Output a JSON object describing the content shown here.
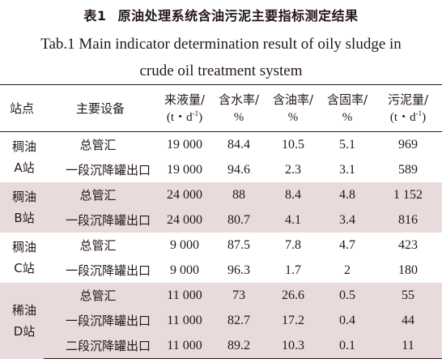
{
  "title": {
    "label": "表1",
    "text": "原油处理系统含油污泥主要指标测定结果",
    "en_line1": "Tab.1  Main indicator determination result of oily sludge in",
    "en_line2": "crude oil treatment system"
  },
  "table": {
    "headers": {
      "station": "站点",
      "equipment": "主要设备",
      "inflow": "来液量/",
      "inflow_unit": "(t・d",
      "water": "含水率/",
      "water_unit": "%",
      "oil": "含油率/",
      "oil_unit": "%",
      "solid": "含固率/",
      "solid_unit": "%",
      "sludge": "污泥量/",
      "sludge_unit": "(t・d",
      "exp": "-1",
      "close": ")"
    },
    "groups": [
      {
        "station_line1": "稠油",
        "station_line2": "A站",
        "rows": [
          {
            "equipment": "总管汇",
            "inflow": "19 000",
            "water": "84.4",
            "oil": "10.5",
            "solid": "5.1",
            "sludge": "969"
          },
          {
            "equipment": "一段沉降罐出口",
            "inflow": "19 000",
            "water": "94.6",
            "oil": "2.3",
            "solid": "3.1",
            "sludge": "589"
          }
        ]
      },
      {
        "station_line1": "稠油",
        "station_line2": "B站",
        "rows": [
          {
            "equipment": "总管汇",
            "inflow": "24 000",
            "water": "88",
            "oil": "8.4",
            "solid": "4.8",
            "sludge": "1 152"
          },
          {
            "equipment": "一段沉降罐出口",
            "inflow": "24 000",
            "water": "80.7",
            "oil": "4.1",
            "solid": "3.4",
            "sludge": "816"
          }
        ]
      },
      {
        "station_line1": "稠油",
        "station_line2": "C站",
        "rows": [
          {
            "equipment": "总管汇",
            "inflow": "9 000",
            "water": "87.5",
            "oil": "7.8",
            "solid": "4.7",
            "sludge": "423"
          },
          {
            "equipment": "一段沉降罐出口",
            "inflow": "9 000",
            "water": "96.3",
            "oil": "1.7",
            "solid": "2",
            "sludge": "180"
          }
        ]
      },
      {
        "station_line1": "稀油",
        "station_line2": "D站",
        "rows": [
          {
            "equipment": "总管汇",
            "inflow": "11 000",
            "water": "73",
            "oil": "26.6",
            "solid": "0.5",
            "sludge": "55"
          },
          {
            "equipment": "一段沉降罐出口",
            "inflow": "11 000",
            "water": "82.7",
            "oil": "17.2",
            "solid": "0.4",
            "sludge": "44"
          },
          {
            "equipment": "二段沉降罐出口",
            "inflow": "11 000",
            "water": "89.2",
            "oil": "10.3",
            "solid": "0.1",
            "sludge": "11"
          }
        ]
      }
    ],
    "shade_color": "#e9dadb"
  }
}
